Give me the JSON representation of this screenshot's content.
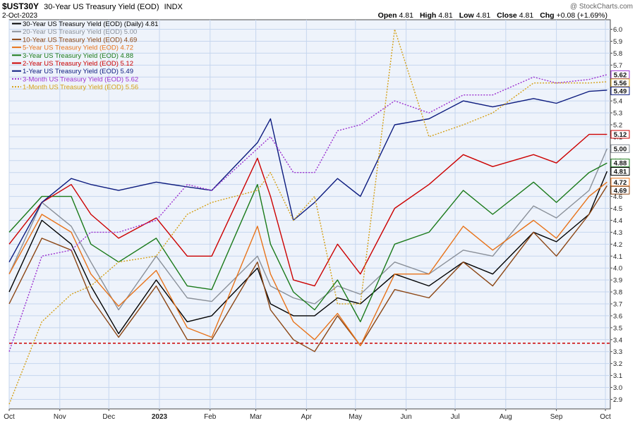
{
  "header": {
    "symbol": "$UST30Y",
    "description": "30-Year US Treasury Yield (EOD)",
    "exchange": "INDX",
    "date": "2-Oct-2023",
    "watermark": "@ StockCharts.com",
    "ohlc": [
      {
        "label": "Open",
        "value": "4.81"
      },
      {
        "label": "High",
        "value": "4.81"
      },
      {
        "label": "Low",
        "value": "4.81"
      },
      {
        "label": "Close",
        "value": "4.81"
      },
      {
        "label": "Chg",
        "value": "+0.08 (+1.69%)"
      }
    ]
  },
  "chart_data": {
    "type": "line",
    "xlabel": "",
    "ylabel": "",
    "ylim": [
      2.82,
      6.08
    ],
    "y_ticks": [
      2.9,
      3.0,
      3.1,
      3.2,
      3.3,
      3.4,
      3.5,
      3.6,
      3.7,
      3.8,
      3.9,
      4.0,
      4.1,
      4.2,
      4.3,
      4.4,
      4.5,
      4.6,
      4.7,
      4.8,
      4.9,
      5.0,
      5.1,
      5.2,
      5.3,
      5.4,
      5.5,
      5.6,
      5.7,
      5.8,
      5.9,
      6.0
    ],
    "y_tick_labels": [
      "2.9",
      "3.0",
      "3.1",
      "3.2",
      "3.3",
      "3.4",
      "3.5",
      "3.6",
      "3.7",
      "3.8",
      "3.9",
      "4.0",
      "4.1",
      "4.2",
      "4.3",
      "4.4",
      "4.5",
      "4.6",
      "4.7",
      "4.8",
      "4.9",
      "5.0",
      "5.1",
      "5.2",
      "5.3",
      "5.4",
      "5.5",
      "5.6",
      "5.7",
      "5.8",
      "5.9",
      "6.0"
    ],
    "x_range": [
      "2022-10-01",
      "2023-10-04"
    ],
    "x_ticks": [
      {
        "date": "2022-10-01",
        "label": "Oct",
        "bold": false
      },
      {
        "date": "2022-11-01",
        "label": "Nov",
        "bold": false
      },
      {
        "date": "2022-12-01",
        "label": "Dec",
        "bold": false
      },
      {
        "date": "2023-01-01",
        "label": "2023",
        "bold": true
      },
      {
        "date": "2023-02-01",
        "label": "Feb",
        "bold": false
      },
      {
        "date": "2023-03-01",
        "label": "Mar",
        "bold": false
      },
      {
        "date": "2023-04-01",
        "label": "Apr",
        "bold": false
      },
      {
        "date": "2023-05-01",
        "label": "May",
        "bold": false
      },
      {
        "date": "2023-06-01",
        "label": "Jun",
        "bold": false
      },
      {
        "date": "2023-07-01",
        "label": "Jul",
        "bold": false
      },
      {
        "date": "2023-08-01",
        "label": "Aug",
        "bold": false
      },
      {
        "date": "2023-09-01",
        "label": "Sep",
        "bold": false
      },
      {
        "date": "2023-10-01",
        "label": "Oct",
        "bold": false
      }
    ],
    "grid": true,
    "legend_position": "top-left",
    "reference_line": {
      "value": 3.37,
      "color": "#cc0000",
      "style": "dashed"
    },
    "series": [
      {
        "name": "30-Year US Treasury Yield (EOD) (Daily)",
        "last": "4.81",
        "color": "#000000",
        "dashed": false,
        "points": [
          [
            "2022-10-01",
            3.8
          ],
          [
            "2022-10-21",
            4.4
          ],
          [
            "2022-11-08",
            4.2
          ],
          [
            "2022-11-20",
            3.85
          ],
          [
            "2022-12-07",
            3.45
          ],
          [
            "2022-12-30",
            3.9
          ],
          [
            "2023-01-18",
            3.55
          ],
          [
            "2023-02-02",
            3.6
          ],
          [
            "2023-03-02",
            4.0
          ],
          [
            "2023-03-10",
            3.7
          ],
          [
            "2023-03-24",
            3.6
          ],
          [
            "2023-04-06",
            3.6
          ],
          [
            "2023-04-20",
            3.75
          ],
          [
            "2023-05-04",
            3.7
          ],
          [
            "2023-05-25",
            3.95
          ],
          [
            "2023-06-15",
            3.85
          ],
          [
            "2023-07-06",
            4.05
          ],
          [
            "2023-07-24",
            3.95
          ],
          [
            "2023-08-18",
            4.3
          ],
          [
            "2023-09-01",
            4.22
          ],
          [
            "2023-09-21",
            4.45
          ],
          [
            "2023-10-02",
            4.81
          ]
        ]
      },
      {
        "name": "20-Year US Treasury Yield (EOD)",
        "last": "5.00",
        "color": "#8a9099",
        "dashed": false,
        "points": [
          [
            "2022-10-01",
            3.95
          ],
          [
            "2022-10-21",
            4.55
          ],
          [
            "2022-11-08",
            4.35
          ],
          [
            "2022-11-20",
            4.05
          ],
          [
            "2022-12-07",
            3.65
          ],
          [
            "2022-12-30",
            4.1
          ],
          [
            "2023-01-18",
            3.75
          ],
          [
            "2023-02-02",
            3.72
          ],
          [
            "2023-03-02",
            4.1
          ],
          [
            "2023-03-10",
            3.85
          ],
          [
            "2023-03-24",
            3.75
          ],
          [
            "2023-04-06",
            3.7
          ],
          [
            "2023-04-20",
            3.85
          ],
          [
            "2023-05-04",
            3.78
          ],
          [
            "2023-05-25",
            4.05
          ],
          [
            "2023-06-15",
            3.95
          ],
          [
            "2023-07-06",
            4.15
          ],
          [
            "2023-07-24",
            4.1
          ],
          [
            "2023-08-18",
            4.52
          ],
          [
            "2023-09-01",
            4.42
          ],
          [
            "2023-09-21",
            4.65
          ],
          [
            "2023-10-02",
            5.0
          ]
        ]
      },
      {
        "name": "10-Year US Treasury Yield (EOD)",
        "last": "4.69",
        "color": "#8b4513",
        "dashed": false,
        "points": [
          [
            "2022-10-01",
            3.7
          ],
          [
            "2022-10-21",
            4.25
          ],
          [
            "2022-11-08",
            4.15
          ],
          [
            "2022-11-20",
            3.75
          ],
          [
            "2022-12-07",
            3.42
          ],
          [
            "2022-12-30",
            3.85
          ],
          [
            "2023-01-18",
            3.4
          ],
          [
            "2023-02-02",
            3.4
          ],
          [
            "2023-03-02",
            4.05
          ],
          [
            "2023-03-10",
            3.65
          ],
          [
            "2023-03-24",
            3.4
          ],
          [
            "2023-04-06",
            3.3
          ],
          [
            "2023-04-20",
            3.6
          ],
          [
            "2023-05-04",
            3.35
          ],
          [
            "2023-05-25",
            3.82
          ],
          [
            "2023-06-15",
            3.75
          ],
          [
            "2023-07-06",
            4.05
          ],
          [
            "2023-07-24",
            3.85
          ],
          [
            "2023-08-18",
            4.3
          ],
          [
            "2023-09-01",
            4.1
          ],
          [
            "2023-09-21",
            4.45
          ],
          [
            "2023-10-02",
            4.69
          ]
        ]
      },
      {
        "name": "5-Year US Treasury Yield (EOD)",
        "last": "4.72",
        "color": "#e8731a",
        "dashed": false,
        "points": [
          [
            "2022-10-01",
            3.95
          ],
          [
            "2022-10-21",
            4.45
          ],
          [
            "2022-11-08",
            4.3
          ],
          [
            "2022-11-20",
            3.95
          ],
          [
            "2022-12-07",
            3.68
          ],
          [
            "2022-12-30",
            3.98
          ],
          [
            "2023-01-18",
            3.5
          ],
          [
            "2023-02-02",
            3.42
          ],
          [
            "2023-03-02",
            4.35
          ],
          [
            "2023-03-10",
            3.95
          ],
          [
            "2023-03-24",
            3.55
          ],
          [
            "2023-04-06",
            3.4
          ],
          [
            "2023-04-20",
            3.62
          ],
          [
            "2023-05-04",
            3.35
          ],
          [
            "2023-05-25",
            3.95
          ],
          [
            "2023-06-15",
            3.95
          ],
          [
            "2023-07-06",
            4.35
          ],
          [
            "2023-07-24",
            4.15
          ],
          [
            "2023-08-18",
            4.4
          ],
          [
            "2023-09-01",
            4.25
          ],
          [
            "2023-09-21",
            4.6
          ],
          [
            "2023-10-02",
            4.72
          ]
        ]
      },
      {
        "name": "3-Year US Treasury Yield (EOD)",
        "last": "4.88",
        "color": "#1a7a1a",
        "dashed": false,
        "points": [
          [
            "2022-10-01",
            4.3
          ],
          [
            "2022-10-21",
            4.6
          ],
          [
            "2022-11-08",
            4.6
          ],
          [
            "2022-11-20",
            4.2
          ],
          [
            "2022-12-07",
            4.05
          ],
          [
            "2022-12-30",
            4.25
          ],
          [
            "2023-01-18",
            3.85
          ],
          [
            "2023-02-02",
            3.82
          ],
          [
            "2023-03-02",
            4.7
          ],
          [
            "2023-03-10",
            4.2
          ],
          [
            "2023-03-24",
            3.8
          ],
          [
            "2023-04-06",
            3.65
          ],
          [
            "2023-04-20",
            3.9
          ],
          [
            "2023-05-04",
            3.55
          ],
          [
            "2023-05-25",
            4.2
          ],
          [
            "2023-06-15",
            4.3
          ],
          [
            "2023-07-06",
            4.65
          ],
          [
            "2023-07-24",
            4.45
          ],
          [
            "2023-08-18",
            4.72
          ],
          [
            "2023-09-01",
            4.55
          ],
          [
            "2023-09-21",
            4.8
          ],
          [
            "2023-10-02",
            4.88
          ]
        ]
      },
      {
        "name": "2-Year US Treasury Yield (EOD)",
        "last": "5.12",
        "color": "#cc0000",
        "dashed": false,
        "points": [
          [
            "2022-10-01",
            4.2
          ],
          [
            "2022-10-21",
            4.55
          ],
          [
            "2022-11-08",
            4.7
          ],
          [
            "2022-11-20",
            4.45
          ],
          [
            "2022-12-07",
            4.25
          ],
          [
            "2022-12-30",
            4.42
          ],
          [
            "2023-01-18",
            4.1
          ],
          [
            "2023-02-02",
            4.1
          ],
          [
            "2023-03-02",
            4.92
          ],
          [
            "2023-03-10",
            4.6
          ],
          [
            "2023-03-24",
            3.9
          ],
          [
            "2023-04-06",
            3.85
          ],
          [
            "2023-04-20",
            4.2
          ],
          [
            "2023-05-04",
            3.95
          ],
          [
            "2023-05-25",
            4.5
          ],
          [
            "2023-06-15",
            4.7
          ],
          [
            "2023-07-06",
            4.95
          ],
          [
            "2023-07-24",
            4.85
          ],
          [
            "2023-08-18",
            4.95
          ],
          [
            "2023-09-01",
            4.88
          ],
          [
            "2023-09-21",
            5.12
          ],
          [
            "2023-10-02",
            5.12
          ]
        ]
      },
      {
        "name": "1-Year US Treasury Yield (EOD)",
        "last": "5.49",
        "color": "#0b1a7e",
        "dashed": false,
        "points": [
          [
            "2022-10-01",
            4.05
          ],
          [
            "2022-10-21",
            4.55
          ],
          [
            "2022-11-08",
            4.75
          ],
          [
            "2022-11-20",
            4.7
          ],
          [
            "2022-12-07",
            4.65
          ],
          [
            "2022-12-30",
            4.72
          ],
          [
            "2023-01-18",
            4.68
          ],
          [
            "2023-02-02",
            4.65
          ],
          [
            "2023-03-02",
            5.05
          ],
          [
            "2023-03-10",
            5.25
          ],
          [
            "2023-03-24",
            4.4
          ],
          [
            "2023-04-06",
            4.55
          ],
          [
            "2023-04-20",
            4.75
          ],
          [
            "2023-05-04",
            4.6
          ],
          [
            "2023-05-25",
            5.2
          ],
          [
            "2023-06-15",
            5.25
          ],
          [
            "2023-07-06",
            5.4
          ],
          [
            "2023-07-24",
            5.35
          ],
          [
            "2023-08-18",
            5.42
          ],
          [
            "2023-09-01",
            5.38
          ],
          [
            "2023-09-21",
            5.48
          ],
          [
            "2023-10-02",
            5.49
          ]
        ]
      },
      {
        "name": "3-Month US Treasury Yield (EOD)",
        "last": "5.62",
        "color": "#9b30d0",
        "dashed": true,
        "points": [
          [
            "2022-10-01",
            3.3
          ],
          [
            "2022-10-21",
            4.1
          ],
          [
            "2022-11-08",
            4.15
          ],
          [
            "2022-11-20",
            4.3
          ],
          [
            "2022-12-07",
            4.3
          ],
          [
            "2022-12-30",
            4.4
          ],
          [
            "2023-01-18",
            4.7
          ],
          [
            "2023-02-02",
            4.65
          ],
          [
            "2023-03-02",
            5.0
          ],
          [
            "2023-03-10",
            5.1
          ],
          [
            "2023-03-24",
            4.8
          ],
          [
            "2023-04-06",
            4.8
          ],
          [
            "2023-04-20",
            5.15
          ],
          [
            "2023-05-04",
            5.2
          ],
          [
            "2023-05-25",
            5.4
          ],
          [
            "2023-06-15",
            5.3
          ],
          [
            "2023-07-06",
            5.45
          ],
          [
            "2023-07-24",
            5.45
          ],
          [
            "2023-08-18",
            5.6
          ],
          [
            "2023-09-01",
            5.55
          ],
          [
            "2023-09-21",
            5.58
          ],
          [
            "2023-10-02",
            5.62
          ]
        ]
      },
      {
        "name": "1-Month US Treasury Yield (EOD)",
        "last": "5.56",
        "color": "#d4a017",
        "dashed": true,
        "points": [
          [
            "2022-10-01",
            2.86
          ],
          [
            "2022-10-21",
            3.55
          ],
          [
            "2022-11-08",
            3.78
          ],
          [
            "2022-11-20",
            3.85
          ],
          [
            "2022-12-07",
            4.05
          ],
          [
            "2022-12-30",
            4.1
          ],
          [
            "2023-01-18",
            4.45
          ],
          [
            "2023-02-02",
            4.55
          ],
          [
            "2023-03-02",
            4.65
          ],
          [
            "2023-03-10",
            4.8
          ],
          [
            "2023-03-24",
            4.4
          ],
          [
            "2023-04-06",
            4.6
          ],
          [
            "2023-04-20",
            3.7
          ],
          [
            "2023-05-04",
            3.7
          ],
          [
            "2023-05-25",
            6.0
          ],
          [
            "2023-06-15",
            5.1
          ],
          [
            "2023-07-06",
            5.2
          ],
          [
            "2023-07-24",
            5.3
          ],
          [
            "2023-08-18",
            5.55
          ],
          [
            "2023-09-01",
            5.55
          ],
          [
            "2023-09-21",
            5.55
          ],
          [
            "2023-10-02",
            5.56
          ]
        ]
      }
    ]
  }
}
